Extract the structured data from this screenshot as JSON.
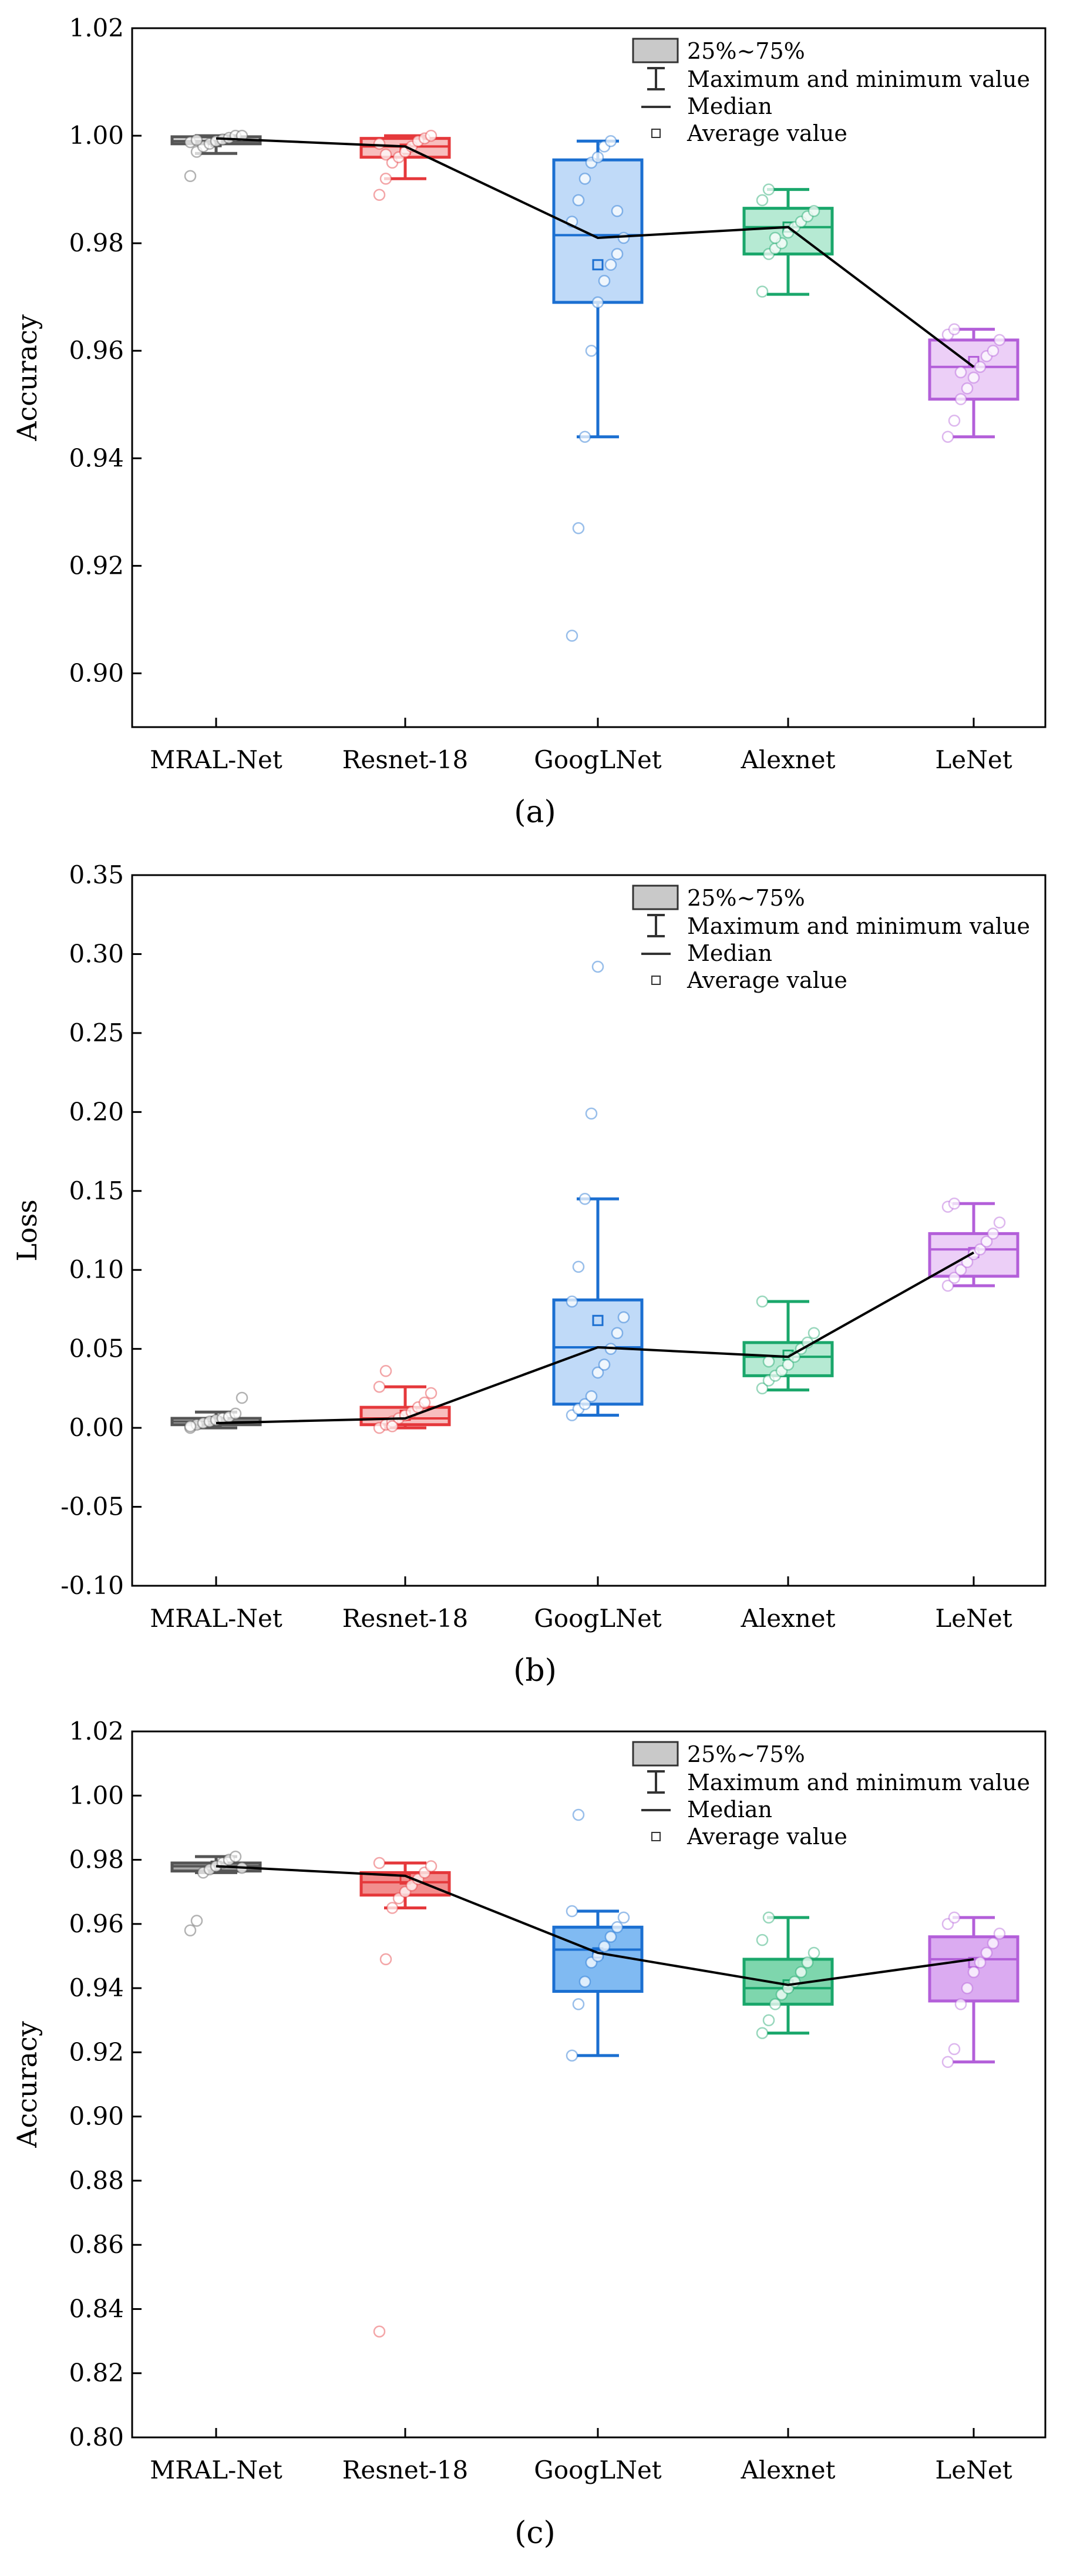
{
  "figure": {
    "captions": [
      "(a)",
      "(b)",
      "(c)"
    ],
    "legend_labels": {
      "box": "25%~75%",
      "whisker": "Maximum and minimum value",
      "median": "Median",
      "average": "Average value"
    }
  },
  "chart_data": [
    {
      "type": "box",
      "panel": "a",
      "ylabel": "Accuracy",
      "ylim": [
        0.89,
        1.02
      ],
      "yticks": [
        "0.90",
        "0.92",
        "0.94",
        "0.96",
        "0.98",
        "1.00",
        "1.02"
      ],
      "categories": [
        "MRAL-Net",
        "Resnet-18",
        "GoogLNet",
        "Alexnet",
        "LeNet"
      ],
      "colors": [
        "#555555",
        "#e5383b",
        "#1b6fd1",
        "#1aa76b",
        "#b35fd9"
      ],
      "fills": [
        "#d8d8d8",
        "#f7b3b3",
        "#b5d4f7",
        "#a9e6cb",
        "#e9c7f6"
      ],
      "series": [
        {
          "name": "MRAL-Net",
          "q1": 0.9985,
          "median": 0.999,
          "q3": 0.9998,
          "mean": 0.9989,
          "min": 0.9967,
          "max": 1.0,
          "points": [
            0.9925,
            0.997,
            0.998,
            0.9985,
            0.999,
            0.9993,
            0.9996,
            1.0,
            1.0,
            0.9988,
            0.9992
          ]
        },
        {
          "name": "Resnet-18",
          "q1": 0.996,
          "median": 0.998,
          "q3": 0.9995,
          "mean": 0.9975,
          "min": 0.992,
          "max": 1.0,
          "points": [
            0.989,
            0.992,
            0.995,
            0.996,
            0.997,
            0.998,
            0.999,
            0.9995,
            1.0,
            0.9985,
            0.9965
          ]
        },
        {
          "name": "GoogLNet",
          "q1": 0.969,
          "median": 0.9815,
          "q3": 0.9955,
          "mean": 0.976,
          "min": 0.944,
          "max": 0.999,
          "points": [
            0.907,
            0.927,
            0.944,
            0.96,
            0.969,
            0.973,
            0.976,
            0.978,
            0.981,
            0.984,
            0.988,
            0.992,
            0.995,
            0.996,
            0.998,
            0.999,
            0.986
          ]
        },
        {
          "name": "Alexnet",
          "q1": 0.978,
          "median": 0.983,
          "q3": 0.9865,
          "mean": 0.983,
          "min": 0.9705,
          "max": 0.99,
          "points": [
            0.971,
            0.978,
            0.979,
            0.98,
            0.982,
            0.983,
            0.984,
            0.985,
            0.986,
            0.988,
            0.99,
            0.981
          ]
        },
        {
          "name": "LeNet",
          "q1": 0.951,
          "median": 0.957,
          "q3": 0.962,
          "mean": 0.958,
          "min": 0.944,
          "max": 0.964,
          "points": [
            0.944,
            0.947,
            0.951,
            0.953,
            0.955,
            0.957,
            0.959,
            0.96,
            0.962,
            0.963,
            0.964,
            0.956
          ]
        }
      ],
      "mean_line": [
        0.9995,
        0.998,
        0.981,
        0.983,
        0.957
      ]
    },
    {
      "type": "box",
      "panel": "b",
      "ylabel": "Loss",
      "ylim": [
        -0.1,
        0.35
      ],
      "yticks": [
        "-0.10",
        "-0.05",
        "0.00",
        "0.05",
        "0.10",
        "0.15",
        "0.20",
        "0.25",
        "0.30",
        "0.35"
      ],
      "categories": [
        "MRAL-Net",
        "Resnet-18",
        "GoogLNet",
        "Alexnet",
        "LeNet"
      ],
      "colors": [
        "#555555",
        "#e5383b",
        "#1b6fd1",
        "#1aa76b",
        "#b35fd9"
      ],
      "fills": [
        "#d8d8d8",
        "#f7b3b3",
        "#b5d4f7",
        "#a9e6cb",
        "#e9c7f6"
      ],
      "series": [
        {
          "name": "MRAL-Net",
          "q1": 0.002,
          "median": 0.004,
          "q3": 0.006,
          "mean": 0.004,
          "min": 0.0,
          "max": 0.01,
          "points": [
            0.0,
            0.002,
            0.003,
            0.004,
            0.005,
            0.006,
            0.007,
            0.009,
            0.019,
            0.001
          ]
        },
        {
          "name": "Resnet-18",
          "q1": 0.002,
          "median": 0.006,
          "q3": 0.013,
          "mean": 0.008,
          "min": 0.0,
          "max": 0.026,
          "points": [
            0.0,
            0.002,
            0.004,
            0.006,
            0.008,
            0.01,
            0.013,
            0.016,
            0.022,
            0.026,
            0.036,
            0.001
          ]
        },
        {
          "name": "GoogLNet",
          "q1": 0.015,
          "median": 0.051,
          "q3": 0.081,
          "mean": 0.068,
          "min": 0.008,
          "max": 0.145,
          "points": [
            0.008,
            0.012,
            0.015,
            0.02,
            0.035,
            0.04,
            0.05,
            0.06,
            0.07,
            0.08,
            0.102,
            0.145,
            0.199,
            0.292
          ]
        },
        {
          "name": "Alexnet",
          "q1": 0.033,
          "median": 0.045,
          "q3": 0.054,
          "mean": 0.046,
          "min": 0.024,
          "max": 0.08,
          "points": [
            0.025,
            0.03,
            0.033,
            0.036,
            0.04,
            0.045,
            0.05,
            0.054,
            0.06,
            0.08,
            0.042
          ]
        },
        {
          "name": "LeNet",
          "q1": 0.096,
          "median": 0.113,
          "q3": 0.123,
          "mean": 0.111,
          "min": 0.09,
          "max": 0.142,
          "points": [
            0.09,
            0.095,
            0.1,
            0.105,
            0.11,
            0.113,
            0.118,
            0.123,
            0.13,
            0.14,
            0.142
          ]
        }
      ],
      "mean_line": [
        0.003,
        0.006,
        0.051,
        0.045,
        0.111
      ]
    },
    {
      "type": "box",
      "panel": "c",
      "ylabel": "Accuracy",
      "ylim": [
        0.8,
        1.02
      ],
      "yticks": [
        "0.80",
        "0.82",
        "0.84",
        "0.86",
        "0.88",
        "0.90",
        "0.92",
        "0.94",
        "0.96",
        "0.98",
        "1.00",
        "1.02"
      ],
      "categories": [
        "MRAL-Net",
        "Resnet-18",
        "GoogLNet",
        "Alexnet",
        "LeNet"
      ],
      "colors": [
        "#555555",
        "#e5383b",
        "#1b6fd1",
        "#1aa76b",
        "#b35fd9"
      ],
      "fills": [
        "#9a9a9a",
        "#f07a7a",
        "#6aaef0",
        "#67cf9f",
        "#d59cee"
      ],
      "series": [
        {
          "name": "MRAL-Net",
          "q1": 0.9765,
          "median": 0.978,
          "q3": 0.979,
          "mean": 0.978,
          "min": 0.976,
          "max": 0.981,
          "points": [
            0.958,
            0.961,
            0.976,
            0.977,
            0.978,
            0.979,
            0.98,
            0.981,
            0.9775
          ]
        },
        {
          "name": "Resnet-18",
          "q1": 0.969,
          "median": 0.973,
          "q3": 0.976,
          "mean": 0.974,
          "min": 0.965,
          "max": 0.979,
          "points": [
            0.833,
            0.949,
            0.965,
            0.968,
            0.97,
            0.972,
            0.974,
            0.976,
            0.978,
            0.979
          ]
        },
        {
          "name": "GoogLNet",
          "q1": 0.939,
          "median": 0.952,
          "q3": 0.959,
          "mean": 0.951,
          "min": 0.919,
          "max": 0.964,
          "points": [
            0.919,
            0.935,
            0.942,
            0.948,
            0.95,
            0.953,
            0.956,
            0.959,
            0.962,
            0.964,
            0.994
          ]
        },
        {
          "name": "Alexnet",
          "q1": 0.935,
          "median": 0.94,
          "q3": 0.949,
          "mean": 0.941,
          "min": 0.926,
          "max": 0.962,
          "points": [
            0.926,
            0.93,
            0.935,
            0.938,
            0.94,
            0.942,
            0.945,
            0.948,
            0.951,
            0.955,
            0.962
          ]
        },
        {
          "name": "LeNet",
          "q1": 0.936,
          "median": 0.949,
          "q3": 0.956,
          "mean": 0.948,
          "min": 0.917,
          "max": 0.962,
          "points": [
            0.917,
            0.921,
            0.935,
            0.94,
            0.945,
            0.948,
            0.951,
            0.954,
            0.957,
            0.96,
            0.962
          ]
        }
      ],
      "mean_line": [
        0.978,
        0.975,
        0.951,
        0.941,
        0.949
      ]
    }
  ]
}
